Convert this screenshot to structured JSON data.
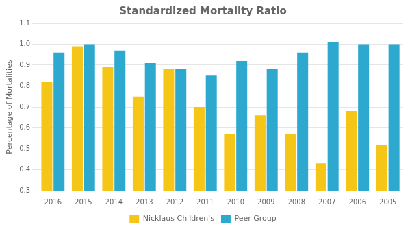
{
  "chart_data": {
    "type": "bar",
    "title": "Standardized Mortality Ratio",
    "ylabel": "Percentage of Mortalities",
    "categories": [
      "2016",
      "2015",
      "2014",
      "2013",
      "2012",
      "2011",
      "2010",
      "2009",
      "2008",
      "2007",
      "2006",
      "2005"
    ],
    "series": [
      {
        "name": "Nicklaus Children's",
        "color": "#F5C518",
        "values": [
          0.82,
          0.99,
          0.89,
          0.75,
          0.88,
          0.7,
          0.57,
          0.66,
          0.57,
          0.43,
          0.68,
          0.52
        ]
      },
      {
        "name": "Peer Group",
        "color": "#2DA8CE",
        "values": [
          0.96,
          1.0,
          0.97,
          0.91,
          0.88,
          0.85,
          0.92,
          0.88,
          0.96,
          1.01,
          1.0,
          1.0
        ]
      }
    ],
    "ylim": [
      0.3,
      1.1
    ],
    "yticks": [
      0.3,
      0.4,
      0.5,
      0.6,
      0.7,
      0.8,
      0.9,
      {
        "value": 1.0,
        "label": "1.0"
      },
      1.1
    ],
    "grid": true,
    "legend": "bottom"
  }
}
